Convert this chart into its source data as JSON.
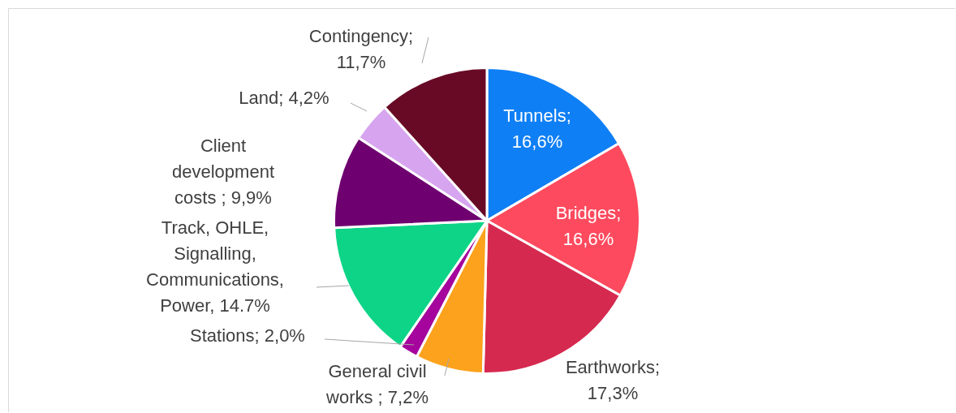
{
  "chart_data": {
    "type": "pie",
    "categories": [
      "Tunnels;\n16,6%",
      "Bridges;\n16,6%",
      "Earthworks;\n17,3%",
      "General civil\nworks ; 7,2%",
      "Stations; 2,0%",
      "Track, OHLE,\nSignalling,\nCommunications,\nPower, 14.7%",
      "Client\ndevelopment\ncosts ; 9,9%",
      "Land; 4,2%",
      "Contingency;\n11,7%"
    ],
    "values": [
      16.6,
      16.6,
      17.3,
      7.2,
      2.0,
      14.7,
      9.9,
      4.2,
      11.7
    ],
    "colors": [
      "#0f7ff5",
      "#fe4a5e",
      "#d6294f",
      "#fca21c",
      "#a5049d",
      "#0dd487",
      "#6f0070",
      "#d7a5ef",
      "#680a26"
    ],
    "legend": false
  }
}
